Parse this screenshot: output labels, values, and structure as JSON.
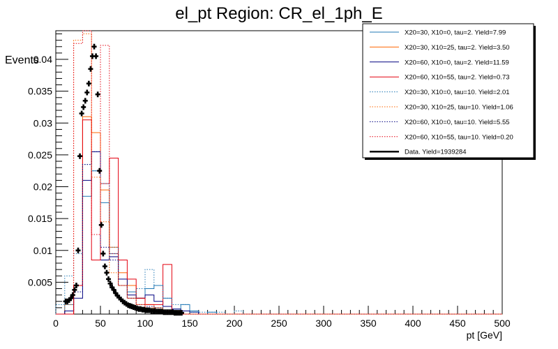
{
  "title": "el_pt Region: CR_el_1ph_E",
  "chart_data": {
    "type": "line",
    "title": "el_pt Region: CR_el_1ph_E",
    "xlabel": "pt [GeV]",
    "ylabel": "Events",
    "xlim": [
      0,
      500
    ],
    "ylim": [
      0,
      0.0445
    ],
    "x_ticks": [
      "0",
      "50",
      "100",
      "150",
      "200",
      "250",
      "300",
      "350",
      "400",
      "450",
      "500"
    ],
    "y_ticks": [
      "0.005",
      "0.01",
      "0.015",
      "0.02",
      "0.025",
      "0.03",
      "0.035",
      "0.04"
    ],
    "bin_width": 10,
    "bin_edges": [
      0,
      10,
      20,
      30,
      40,
      50,
      60,
      70,
      80,
      90,
      100,
      110,
      120,
      130,
      140,
      150,
      160,
      170,
      180,
      190,
      200,
      210
    ],
    "grid": false,
    "legend_position": "top-right",
    "series": [
      {
        "name": "X20=30, X10=0, tau=2. Yield=7.99",
        "color": "#1f77b4",
        "dash": "solid",
        "values": [
          0,
          0.0015,
          0.0045,
          0.0185,
          0.0225,
          0.0175,
          0.0095,
          0.0045,
          0.0035,
          0.0025,
          0.004,
          0.0045,
          0.0025,
          0.0008,
          0.0015,
          0.0005,
          0,
          0.0003,
          0,
          0,
          0
        ]
      },
      {
        "name": "X20=30, X10=25, tau=2. Yield=3.50",
        "color": "#ff6600",
        "dash": "solid",
        "values": [
          0,
          0,
          0.0045,
          0.031,
          0.0285,
          0.0195,
          0.0105,
          0.0065,
          0.0045,
          0.0025,
          0.0015,
          0.001,
          0.0005,
          0.0003,
          0,
          0,
          0,
          0,
          0,
          0,
          0
        ]
      },
      {
        "name": "X20=60, X10=0, tau=2. Yield=11.59",
        "color": "#000080",
        "dash": "solid",
        "values": [
          0,
          0.0005,
          0.0025,
          0.021,
          0.0255,
          0.0085,
          0.009,
          0.0055,
          0.003,
          0.0025,
          0.003,
          0.002,
          0.0012,
          0.0008,
          0.0005,
          0.0003,
          0,
          0,
          0,
          0,
          0
        ]
      },
      {
        "name": "X20=60, X10=55, tau=2. Yield=0.73",
        "color": "#e3000f",
        "dash": "solid",
        "values": [
          0,
          0,
          0.0045,
          0.0305,
          0.0085,
          0.0205,
          0.0245,
          0.0085,
          0.0055,
          0.0025,
          0.0015,
          0.0015,
          0.0078,
          0.0005,
          0,
          0,
          0,
          0,
          0,
          0,
          0
        ]
      },
      {
        "name": "X20=30, X10=0, tau=10. Yield=2.01",
        "color": "#1f77b4",
        "dash": "dotted",
        "values": [
          0.0015,
          0.006,
          0.0095,
          0.0235,
          0.0225,
          0.0205,
          0.0105,
          0.0045,
          0.0025,
          0.004,
          0.007,
          0.0045,
          0.0025,
          0.0015,
          0.0015,
          0.0003,
          0.0003,
          0.0003,
          0.0003,
          0,
          0.0005
        ]
      },
      {
        "name": "X20=30, X10=25, tau=10. Yield=1.06",
        "color": "#ff6600",
        "dash": "dotted",
        "values": [
          0,
          0.0015,
          0.043,
          0.044,
          0.0215,
          0.0145,
          0.0065,
          0.0045,
          0.0025,
          0.0015,
          0.001,
          0.0005,
          0.0003,
          0,
          0,
          0,
          0,
          0,
          0,
          0,
          0
        ]
      },
      {
        "name": "X20=60, X10=0, tau=10. Yield=5.55",
        "color": "#000080",
        "dash": "dotted",
        "values": [
          0,
          0.0005,
          0.0035,
          0.0235,
          0.0255,
          0.0105,
          0.0085,
          0.0045,
          0.0025,
          0.0015,
          0.0012,
          0.001,
          0.0005,
          0.0003,
          0,
          0,
          0,
          0,
          0,
          0,
          0
        ]
      },
      {
        "name": "X20=60, X10=55, tau=10. Yield=0.20",
        "color": "#e3000f",
        "dash": "dotted",
        "values": [
          0,
          0,
          0.0425,
          0.0445,
          0.0125,
          0.0422,
          0.0095,
          0.0045,
          0.0025,
          0.0015,
          0.0008,
          0.0005,
          0.0003,
          0,
          0,
          0,
          0,
          0,
          0,
          0,
          0
        ]
      }
    ],
    "data_series": {
      "name": "Data. Yield=1939284",
      "color": "#000000",
      "x": [
        11,
        13,
        15,
        17,
        19,
        21,
        23,
        25,
        27,
        29,
        31,
        33,
        35,
        37,
        39,
        41,
        43,
        45,
        47,
        49,
        51,
        53,
        55,
        57,
        59,
        61,
        63,
        65,
        67,
        69,
        71,
        73,
        75,
        77,
        79,
        81,
        83,
        85,
        87,
        89,
        91,
        93,
        95,
        97,
        99,
        101,
        103,
        105,
        107,
        109,
        111,
        113,
        115,
        117,
        119,
        121,
        123,
        125,
        127,
        129,
        131,
        133,
        135,
        137,
        139,
        141
      ],
      "y": [
        0.002,
        0.002,
        0.0022,
        0.0025,
        0.003,
        0.0038,
        0.0045,
        0.01,
        0.0248,
        0.0315,
        0.0325,
        0.0335,
        0.0348,
        0.0362,
        0.0385,
        0.0405,
        0.042,
        0.0405,
        0.0345,
        0.0225,
        0.014,
        0.0095,
        0.0075,
        0.0065,
        0.0055,
        0.0048,
        0.0042,
        0.0038,
        0.0033,
        0.0029,
        0.0026,
        0.0023,
        0.002,
        0.0018,
        0.0016,
        0.0014,
        0.0013,
        0.0012,
        0.0011,
        0.001,
        0.0009,
        0.0008,
        0.0008,
        0.0007,
        0.0007,
        0.0006,
        0.0006,
        0.0006,
        0.0005,
        0.0005,
        0.0005,
        0.0004,
        0.0004,
        0.0004,
        0.0004,
        0.0003,
        0.0003,
        0.0003,
        0.0003,
        0.0003,
        0.0003,
        0.0002,
        0.0002,
        0.0002,
        0.0002,
        0.0002
      ]
    }
  }
}
